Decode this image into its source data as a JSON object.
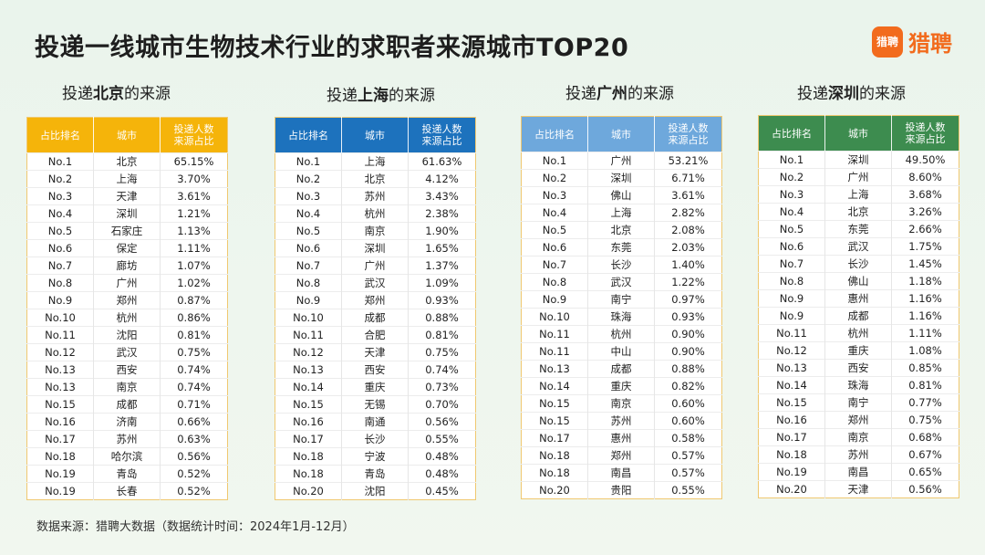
{
  "title": "投递一线城市生物技术行业的求职者来源城市TOP20",
  "logo": {
    "icon_text": "猎聘",
    "text": "猎聘"
  },
  "source": "数据来源：猎聘大数据（数据统计时间：2024年1月-12月）",
  "chart_data": [
    {
      "type": "table",
      "city": "北京",
      "title_prefix": "投递",
      "title_suffix": "的来源",
      "headers": [
        "占比排名",
        "城市",
        "投递人数\n来源占比"
      ],
      "color": "#f5b40a",
      "rows": [
        [
          "No.1",
          "北京",
          "65.15%"
        ],
        [
          "No.2",
          "上海",
          "3.70%"
        ],
        [
          "No.3",
          "天津",
          "3.61%"
        ],
        [
          "No.4",
          "深圳",
          "1.21%"
        ],
        [
          "No.5",
          "石家庄",
          "1.13%"
        ],
        [
          "No.6",
          "保定",
          "1.11%"
        ],
        [
          "No.7",
          "廊坊",
          "1.07%"
        ],
        [
          "No.8",
          "广州",
          "1.02%"
        ],
        [
          "No.9",
          "郑州",
          "0.87%"
        ],
        [
          "No.10",
          "杭州",
          "0.86%"
        ],
        [
          "No.11",
          "沈阳",
          "0.81%"
        ],
        [
          "No.12",
          "武汉",
          "0.75%"
        ],
        [
          "No.13",
          "西安",
          "0.74%"
        ],
        [
          "No.13",
          "南京",
          "0.74%"
        ],
        [
          "No.15",
          "成都",
          "0.71%"
        ],
        [
          "No.16",
          "济南",
          "0.66%"
        ],
        [
          "No.17",
          "苏州",
          "0.63%"
        ],
        [
          "No.18",
          "哈尔滨",
          "0.56%"
        ],
        [
          "No.19",
          "青岛",
          "0.52%"
        ],
        [
          "No.19",
          "长春",
          "0.52%"
        ]
      ]
    },
    {
      "type": "table",
      "city": "上海",
      "title_prefix": "投递",
      "title_suffix": "的来源",
      "headers": [
        "占比排名",
        "城市",
        "投递人数\n来源占比"
      ],
      "color": "#1d72bd",
      "rows": [
        [
          "No.1",
          "上海",
          "61.63%"
        ],
        [
          "No.2",
          "北京",
          "4.12%"
        ],
        [
          "No.3",
          "苏州",
          "3.43%"
        ],
        [
          "No.4",
          "杭州",
          "2.38%"
        ],
        [
          "No.5",
          "南京",
          "1.90%"
        ],
        [
          "No.6",
          "深圳",
          "1.65%"
        ],
        [
          "No.7",
          "广州",
          "1.37%"
        ],
        [
          "No.8",
          "武汉",
          "1.09%"
        ],
        [
          "No.9",
          "郑州",
          "0.93%"
        ],
        [
          "No.10",
          "成都",
          "0.88%"
        ],
        [
          "No.11",
          "合肥",
          "0.81%"
        ],
        [
          "No.12",
          "天津",
          "0.75%"
        ],
        [
          "No.13",
          "西安",
          "0.74%"
        ],
        [
          "No.14",
          "重庆",
          "0.73%"
        ],
        [
          "No.15",
          "无锡",
          "0.70%"
        ],
        [
          "No.16",
          "南通",
          "0.56%"
        ],
        [
          "No.17",
          "长沙",
          "0.55%"
        ],
        [
          "No.18",
          "宁波",
          "0.48%"
        ],
        [
          "No.18",
          "青岛",
          "0.48%"
        ],
        [
          "No.20",
          "沈阳",
          "0.45%"
        ]
      ]
    },
    {
      "type": "table",
      "city": "广州",
      "title_prefix": "投递",
      "title_suffix": "的来源",
      "headers": [
        "占比排名",
        "城市",
        "投递人数\n来源占比"
      ],
      "color": "#6ea8dc",
      "rows": [
        [
          "No.1",
          "广州",
          "53.21%"
        ],
        [
          "No.2",
          "深圳",
          "6.71%"
        ],
        [
          "No.3",
          "佛山",
          "3.61%"
        ],
        [
          "No.4",
          "上海",
          "2.82%"
        ],
        [
          "No.5",
          "北京",
          "2.08%"
        ],
        [
          "No.6",
          "东莞",
          "2.03%"
        ],
        [
          "No.7",
          "长沙",
          "1.40%"
        ],
        [
          "No.8",
          "武汉",
          "1.22%"
        ],
        [
          "No.9",
          "南宁",
          "0.97%"
        ],
        [
          "No.10",
          "珠海",
          "0.93%"
        ],
        [
          "No.11",
          "杭州",
          "0.90%"
        ],
        [
          "No.11",
          "中山",
          "0.90%"
        ],
        [
          "No.13",
          "成都",
          "0.88%"
        ],
        [
          "No.14",
          "重庆",
          "0.82%"
        ],
        [
          "No.15",
          "南京",
          "0.60%"
        ],
        [
          "No.15",
          "苏州",
          "0.60%"
        ],
        [
          "No.17",
          "惠州",
          "0.58%"
        ],
        [
          "No.18",
          "郑州",
          "0.57%"
        ],
        [
          "No.18",
          "南昌",
          "0.57%"
        ],
        [
          "No.20",
          "贵阳",
          "0.55%"
        ]
      ]
    },
    {
      "type": "table",
      "city": "深圳",
      "title_prefix": "投递",
      "title_suffix": "的来源",
      "headers": [
        "占比排名",
        "城市",
        "投递人数\n来源占比"
      ],
      "color": "#3d8c4f",
      "rows": [
        [
          "No.1",
          "深圳",
          "49.50%"
        ],
        [
          "No.2",
          "广州",
          "8.60%"
        ],
        [
          "No.3",
          "上海",
          "3.68%"
        ],
        [
          "No.4",
          "北京",
          "3.26%"
        ],
        [
          "No.5",
          "东莞",
          "2.66%"
        ],
        [
          "No.6",
          "武汉",
          "1.75%"
        ],
        [
          "No.7",
          "长沙",
          "1.45%"
        ],
        [
          "No.8",
          "佛山",
          "1.18%"
        ],
        [
          "No.9",
          "惠州",
          "1.16%"
        ],
        [
          "No.9",
          "成都",
          "1.16%"
        ],
        [
          "No.11",
          "杭州",
          "1.11%"
        ],
        [
          "No.12",
          "重庆",
          "1.08%"
        ],
        [
          "No.13",
          "西安",
          "0.85%"
        ],
        [
          "No.14",
          "珠海",
          "0.81%"
        ],
        [
          "No.15",
          "南宁",
          "0.77%"
        ],
        [
          "No.16",
          "郑州",
          "0.75%"
        ],
        [
          "No.17",
          "南京",
          "0.68%"
        ],
        [
          "No.18",
          "苏州",
          "0.67%"
        ],
        [
          "No.19",
          "南昌",
          "0.65%"
        ],
        [
          "No.20",
          "天津",
          "0.56%"
        ]
      ]
    }
  ]
}
